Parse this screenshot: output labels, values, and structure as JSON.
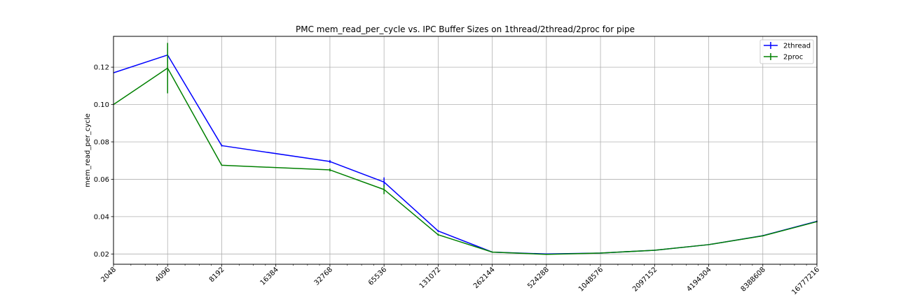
{
  "chart_data": {
    "type": "line",
    "title": "PMC mem_read_per_cycle vs. IPC Buffer Sizes on 1thread/2thread/2proc for pipe",
    "xlabel": "",
    "ylabel": "mem_read_per_cycle",
    "x_scale": "log2",
    "x": [
      2048,
      4096,
      8192,
      16384,
      32768,
      65536,
      131072,
      262144,
      524288,
      1048576,
      2097152,
      4194304,
      8388608,
      16777216
    ],
    "x_tick_labels": [
      "2048",
      "4096",
      "8192",
      "16384",
      "32768",
      "65536",
      "131072",
      "262144",
      "524288",
      "1048576",
      "2097152",
      "4194304",
      "8388608",
      "16777216"
    ],
    "xlim": [
      2048,
      16777216
    ],
    "ylim": [
      0.0145,
      0.1365
    ],
    "y_ticks": [
      0.02,
      0.04,
      0.06,
      0.08,
      0.1,
      0.12
    ],
    "y_tick_labels": [
      "0.02",
      "0.04",
      "0.06",
      "0.08",
      "0.10",
      "0.12"
    ],
    "grid": true,
    "legend_position": "top-right",
    "series": [
      {
        "name": "2thread",
        "color": "#0000ff",
        "values": [
          0.117,
          0.1265,
          0.078,
          null,
          0.0695,
          0.0585,
          0.0323,
          0.021,
          0.02,
          0.0205,
          0.022,
          0.025,
          0.0298,
          0.0375
        ],
        "errors": [
          0,
          0.004,
          0.0005,
          null,
          0.0008,
          0.0025,
          0.0005,
          0.0003,
          0.0002,
          0.0002,
          0.0002,
          0.0002,
          0.0003,
          0.0004
        ]
      },
      {
        "name": "2proc",
        "color": "#008000",
        "values": [
          0.1,
          0.1195,
          0.0675,
          null,
          0.065,
          0.0545,
          0.0303,
          0.021,
          0.0198,
          0.0205,
          0.022,
          0.025,
          0.0297,
          0.0373
        ],
        "errors": [
          0,
          0.0135,
          0.0003,
          null,
          0.0008,
          0.0025,
          0.0005,
          0.0003,
          0.0002,
          0.0002,
          0.0002,
          0.0002,
          0.0003,
          0.0004
        ]
      }
    ]
  }
}
